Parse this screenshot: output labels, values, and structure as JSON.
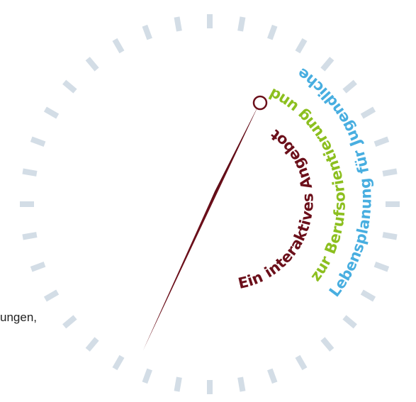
{
  "colors": {
    "tick": "#d3dde6",
    "needle": "#6b0f1a",
    "text_dark_red": "#6b0f1a",
    "text_green": "#8cbf1f",
    "text_blue": "#48aee0"
  },
  "dial": {
    "tick_count": 36,
    "needle_icon": "compass-needle-icon",
    "pivot_icon": "pivot-circle-icon"
  },
  "labels": {
    "line1": "Ein interaktives Angebot",
    "line2": "zur Berufsorientierung und",
    "line3": "Lebensplanung für Jugendliche"
  },
  "fragment": {
    "text": "ungen,"
  }
}
